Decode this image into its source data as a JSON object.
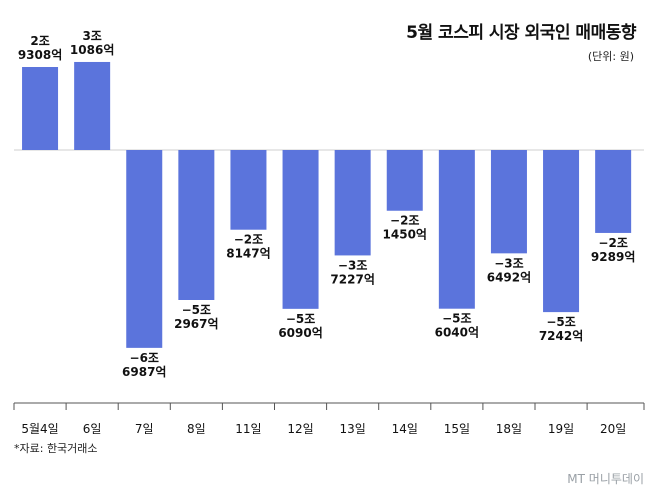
{
  "title": "5월 코스피 시장 외국인 매매동향",
  "unit": "(단위: 원)",
  "source": "*자료: 한국거래소",
  "logo": "MT 머니투데이",
  "colors": {
    "bar": "#5b74dc",
    "axis": "#555555",
    "text": "#111111"
  },
  "chart_data": {
    "type": "bar",
    "categories": [
      "5월4일",
      "6일",
      "7일",
      "8일",
      "11일",
      "12일",
      "13일",
      "14일",
      "15일",
      "18일",
      "19일",
      "20일"
    ],
    "values": [
      29308,
      31086,
      -69870,
      -52967,
      -28147,
      -56090,
      -37227,
      -21450,
      -56040,
      -36492,
      -57242,
      -29289
    ],
    "value_unit": "억원",
    "labels": [
      [
        "2조",
        "9308억"
      ],
      [
        "3조",
        "1086억"
      ],
      [
        "−6조",
        "6987억"
      ],
      [
        "−5조",
        "2967억"
      ],
      [
        "−2조",
        "8147억"
      ],
      [
        "−5조",
        "6090억"
      ],
      [
        "−3조",
        "7227억"
      ],
      [
        "−2조",
        "1450억"
      ],
      [
        "−5조",
        "6040억"
      ],
      [
        "−3조",
        "6492억"
      ],
      [
        "−5조",
        "7242억"
      ],
      [
        "−2조",
        "9289억"
      ]
    ],
    "ylim": [
      -70000,
      35000
    ],
    "grid": false,
    "legend": "none"
  }
}
